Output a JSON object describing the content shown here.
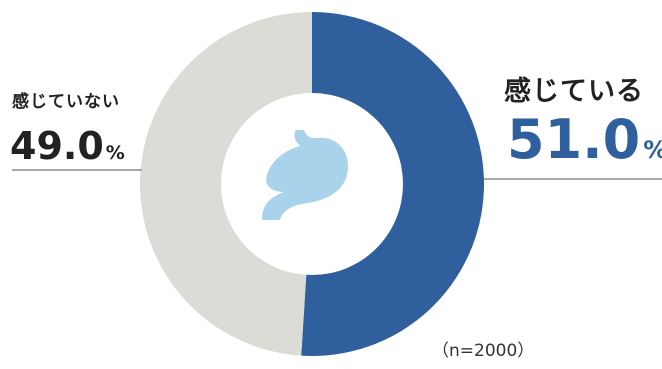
{
  "chart_data": {
    "type": "pie",
    "donut": true,
    "slices": [
      {
        "label": "感じている",
        "value": 51.0,
        "value_text": "51.0",
        "unit": "%",
        "color": "#2f5f9c"
      },
      {
        "label": "感じていない",
        "value": 49.0,
        "value_text": "49.0",
        "unit": "%",
        "color": "#dcdcd6"
      }
    ],
    "sample_note": "（n=2000）",
    "center_icon": "stomach-icon",
    "center_icon_color": "#a9d3ea",
    "label_colors": {
      "yes_value": "#2f5f9c",
      "no_value": "#222222"
    },
    "start": "12 o'clock",
    "direction": "clockwise"
  }
}
